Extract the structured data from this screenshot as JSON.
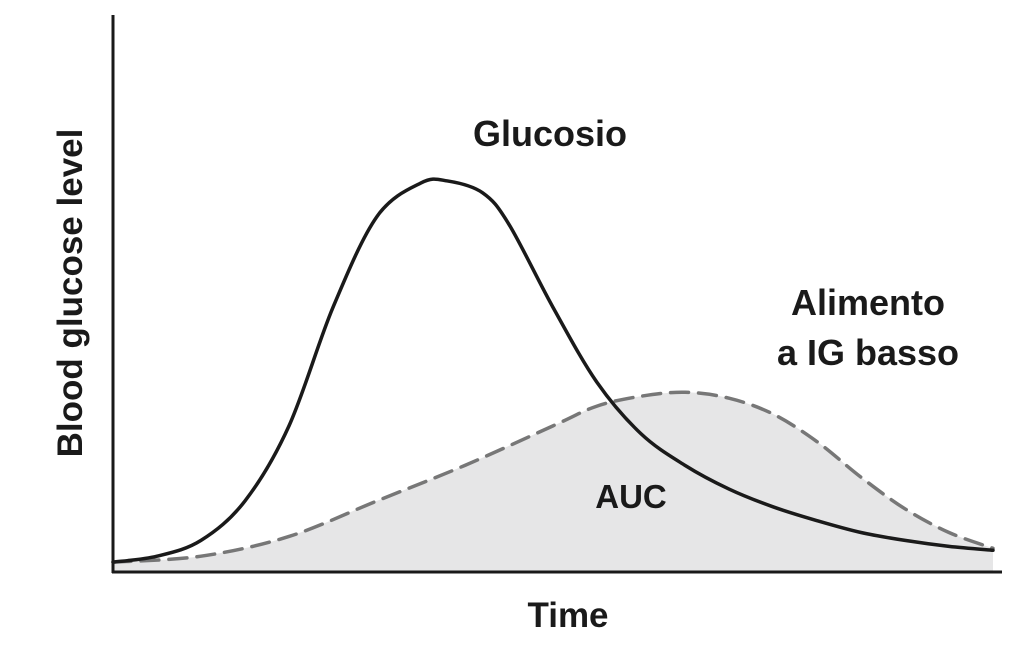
{
  "chart_data": {
    "type": "line",
    "title": "",
    "xlabel": "Time",
    "ylabel": "Blood glucose level",
    "grid": false,
    "legend": "none",
    "xlim": [
      0,
      100
    ],
    "ylim": [
      0,
      100
    ],
    "series": [
      {
        "name": "Glucosio",
        "style": "solid",
        "color": "#1a1a1a",
        "x": [
          0,
          5,
          10,
          15,
          20,
          25,
          30,
          35,
          38,
          42,
          45,
          50,
          55,
          60,
          65,
          70,
          75,
          80,
          85,
          90,
          95,
          100
        ],
        "y": [
          2.5,
          4,
          8,
          18,
          37,
          67,
          90,
          98.5,
          99,
          96,
          88,
          67,
          48,
          35,
          27,
          21,
          16.5,
          13,
          10,
          8,
          6.5,
          5.5
        ]
      },
      {
        "name": "Alimento a IG basso",
        "style": "dashed",
        "color": "#777777",
        "area_fill": "#e6e6e7",
        "x": [
          0,
          10,
          20,
          30,
          40,
          50,
          55,
          60,
          65,
          70,
          75,
          80,
          85,
          90,
          95,
          100
        ],
        "y": [
          2.5,
          4,
          9,
          18,
          27,
          37,
          42,
          44.5,
          45.5,
          44,
          40,
          33,
          24,
          16,
          10,
          6
        ]
      }
    ],
    "labels": {
      "glucose": "Glucosio",
      "low_gi_line1": "Alimento",
      "low_gi_line2": "a IG basso",
      "area": "AUC"
    }
  }
}
